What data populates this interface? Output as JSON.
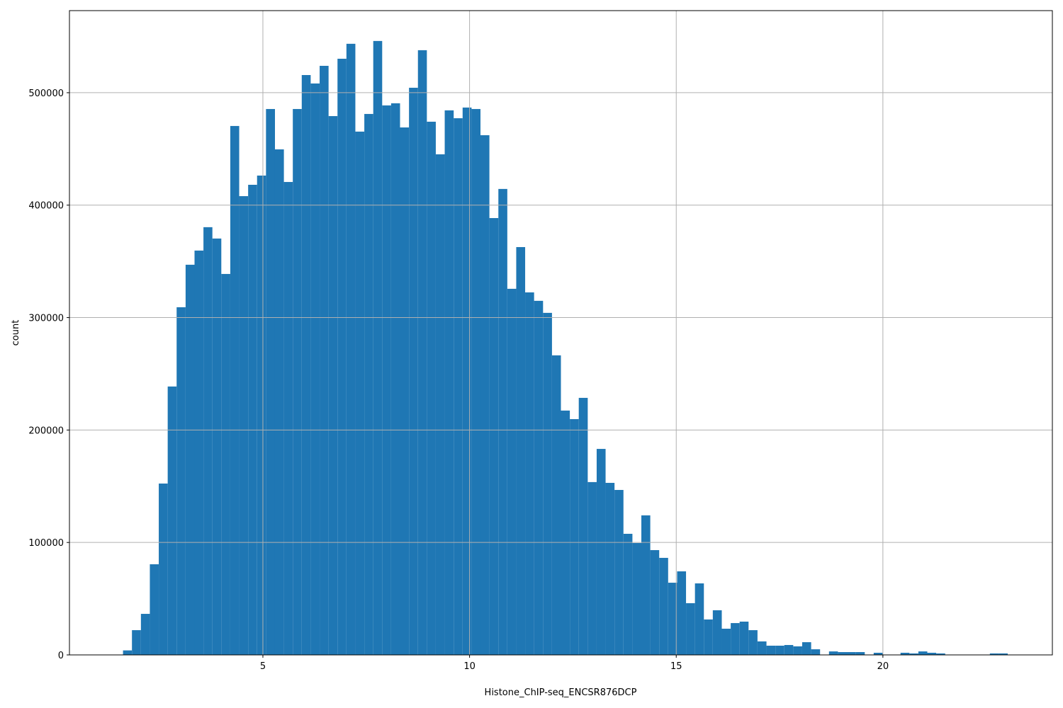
{
  "chart_data": {
    "type": "histogram",
    "xlabel": "Histone_ChIP-seq_ENCSR876DCP",
    "ylabel": "count",
    "color": "#1f77b4",
    "grid": true,
    "bins": [
      1.4,
      1.616,
      1.832,
      2.049,
      2.265,
      2.481,
      2.697,
      2.913,
      3.13,
      3.346,
      3.562,
      3.778,
      3.994,
      4.211,
      4.427,
      4.643,
      4.859,
      5.075,
      5.292,
      5.508,
      5.724,
      5.94,
      6.156,
      6.373,
      6.589,
      6.805,
      7.021,
      7.237,
      7.454,
      7.67,
      7.886,
      8.102,
      8.318,
      8.535,
      8.751,
      8.967,
      9.183,
      9.399,
      9.616,
      9.832,
      10.048,
      10.264,
      10.48,
      10.697,
      10.913,
      11.129,
      11.345,
      11.561,
      11.778,
      11.994,
      12.21,
      12.426,
      12.642,
      12.859,
      13.075,
      13.291,
      13.507,
      13.723,
      13.94,
      14.156,
      14.372,
      14.588,
      14.804,
      15.021,
      15.237,
      15.453,
      15.669,
      15.885,
      16.102,
      16.318,
      16.534,
      16.75,
      16.966,
      17.183,
      17.399,
      17.615,
      17.831,
      18.047,
      18.264,
      18.48,
      18.696,
      18.912,
      19.128,
      19.345,
      19.561,
      19.777,
      19.993,
      20.209,
      20.426,
      20.642,
      20.858,
      21.074,
      21.29,
      21.507,
      21.723,
      21.939,
      22.155,
      22.371,
      22.588,
      22.804,
      23.02
    ],
    "values": [
      0,
      4000,
      22000,
      36500,
      80600,
      152400,
      238700,
      309200,
      347000,
      359600,
      380400,
      370300,
      338800,
      470400,
      408000,
      418100,
      426300,
      485500,
      449600,
      420600,
      485500,
      515700,
      508200,
      523900,
      479200,
      530200,
      543500,
      465400,
      481100,
      546000,
      488700,
      490600,
      469100,
      504400,
      537800,
      474200,
      445200,
      484300,
      477300,
      486800,
      485500,
      462200,
      388500,
      414400,
      325600,
      362700,
      322400,
      314900,
      304200,
      266400,
      217300,
      209700,
      228600,
      153700,
      183200,
      153000,
      146700,
      107700,
      99500,
      124100,
      93200,
      86300,
      64200,
      74300,
      46000,
      63600,
      31500,
      39700,
      23300,
      28300,
      29600,
      22000,
      12000,
      8200,
      8200,
      8800,
      7600,
      11300,
      5000,
      0,
      3100,
      2500,
      2500,
      2500,
      0,
      1900,
      0,
      0,
      1900,
      1300,
      3100,
      1900,
      1300,
      0,
      0,
      0,
      0,
      0,
      1300,
      1300
    ],
    "xlim": [
      0.32,
      24.1
    ],
    "xticks": [
      5,
      10,
      15,
      20
    ],
    "ylim": [
      0,
      573000
    ],
    "yticks": [
      0,
      100000,
      200000,
      300000,
      400000,
      500000
    ]
  }
}
